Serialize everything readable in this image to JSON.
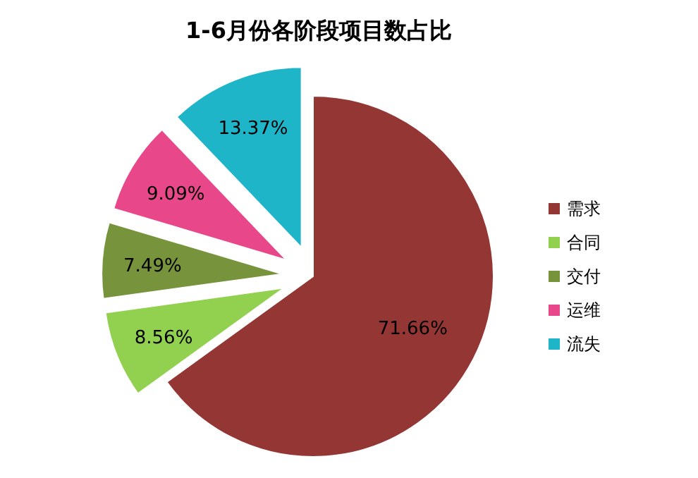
{
  "chart_data": {
    "type": "pie",
    "title": "1-6月份各阶段项目数占比",
    "categories": [
      "需求",
      "合同",
      "交付",
      "运维",
      "流失"
    ],
    "values": [
      71.66,
      8.56,
      7.49,
      9.09,
      13.37
    ],
    "value_labels": [
      "71.66%",
      "8.56%",
      "7.49%",
      "9.09%",
      "13.37%"
    ],
    "colors": [
      "#943634",
      "#92d050",
      "#77933c",
      "#e8488a",
      "#1fb5c9"
    ],
    "legend": "right"
  }
}
